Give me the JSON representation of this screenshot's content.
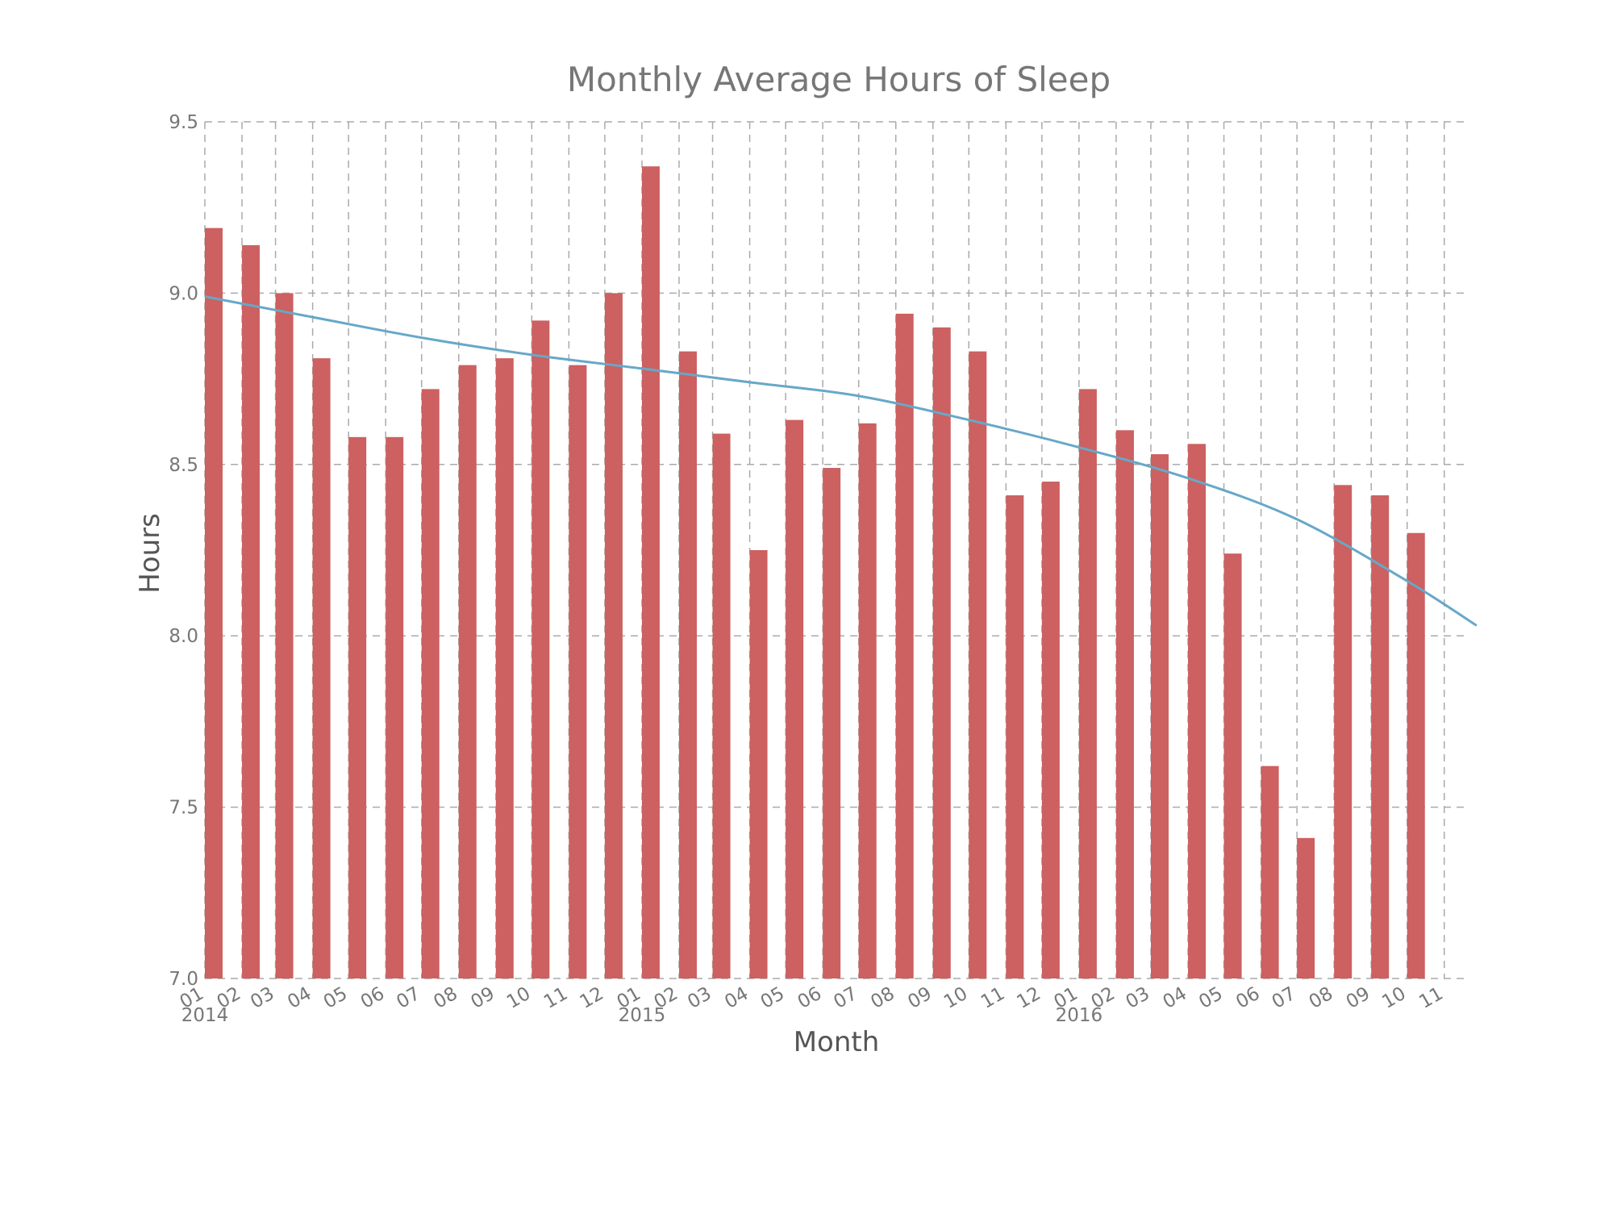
{
  "chart_data": {
    "type": "bar",
    "title": "Monthly Average Hours of Sleep",
    "xlabel": "Month",
    "ylabel": "Hours",
    "ylim": [
      7.0,
      9.5
    ],
    "yticks": [
      "7.0",
      "7.5",
      "8.0",
      "8.5",
      "9.0",
      "9.5"
    ],
    "grid": true,
    "legend": "none",
    "year_labels": [
      {
        "label": "2014",
        "at": "2014-01"
      },
      {
        "label": "2015",
        "at": "2015-01"
      },
      {
        "label": "2016",
        "at": "2016-01"
      }
    ],
    "x_tick_labels": [
      "01",
      "02",
      "03",
      "04",
      "05",
      "06",
      "07",
      "08",
      "09",
      "10",
      "11",
      "12",
      "01",
      "02",
      "03",
      "04",
      "05",
      "06",
      "07",
      "08",
      "09",
      "10",
      "11",
      "12",
      "01",
      "02",
      "03",
      "04",
      "05",
      "06",
      "07",
      "08",
      "09",
      "10",
      "11"
    ],
    "categories": [
      "2014-01",
      "2014-02",
      "2014-03",
      "2014-04",
      "2014-05",
      "2014-06",
      "2014-07",
      "2014-08",
      "2014-09",
      "2014-10",
      "2014-11",
      "2014-12",
      "2015-01",
      "2015-02",
      "2015-03",
      "2015-04",
      "2015-05",
      "2015-06",
      "2015-07",
      "2015-08",
      "2015-09",
      "2015-10",
      "2015-11",
      "2015-12",
      "2016-01",
      "2016-02",
      "2016-03",
      "2016-04",
      "2016-05",
      "2016-06",
      "2016-07",
      "2016-08",
      "2016-09",
      "2016-10"
    ],
    "series": [
      {
        "type": "bar",
        "values": [
          9.19,
          9.14,
          9.0,
          8.81,
          8.58,
          8.58,
          8.72,
          8.79,
          8.81,
          8.92,
          8.79,
          9.0,
          9.37,
          8.83,
          8.59,
          8.25,
          8.63,
          8.49,
          8.62,
          8.94,
          8.9,
          8.83,
          8.41,
          8.45,
          8.72,
          8.6,
          8.53,
          8.56,
          8.24,
          7.62,
          7.41,
          8.44,
          8.41,
          8.3
        ],
        "color": "#cd6060"
      },
      {
        "type": "line",
        "x": [
          "2014-01",
          "2014-04",
          "2014-07",
          "2014-10",
          "2015-01",
          "2015-04",
          "2015-07",
          "2015-10",
          "2016-01",
          "2016-04",
          "2016-07",
          "2016-10",
          "2016-11-28"
        ],
        "values": [
          8.99,
          8.93,
          8.87,
          8.82,
          8.78,
          8.74,
          8.7,
          8.63,
          8.55,
          8.46,
          8.34,
          8.16,
          8.03
        ],
        "color": "#66a8c8"
      }
    ]
  }
}
